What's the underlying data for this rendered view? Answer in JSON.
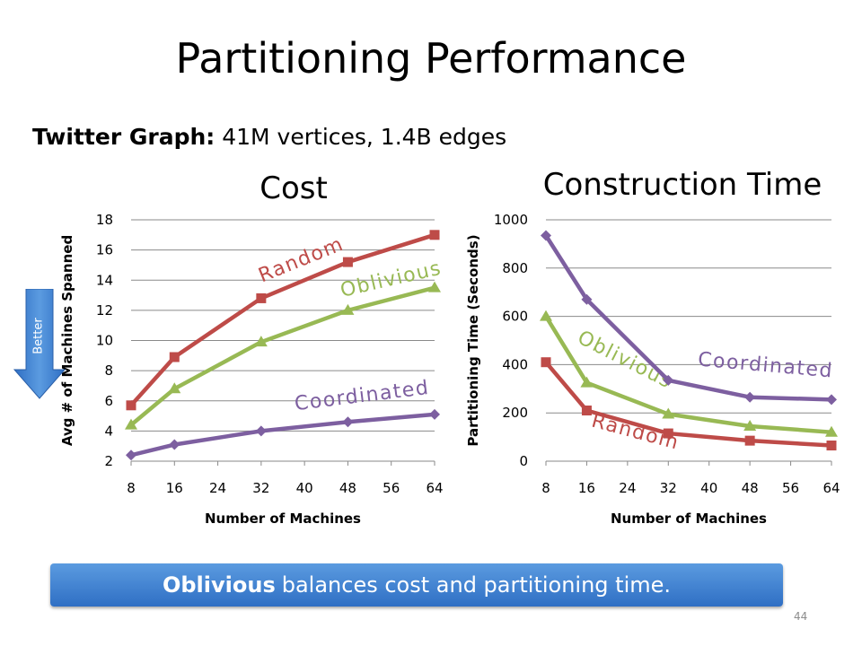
{
  "slide": {
    "title": "Partitioning Performance",
    "subtitle_bold": "Twitter Graph:",
    "subtitle_rest": " 41M vertices, 1.4B edges",
    "better_label": "Better",
    "banner_bold": "Oblivious",
    "banner_rest": "balances cost and partitioning time.",
    "slide_number": "44"
  },
  "chart_data": [
    {
      "id": "cost",
      "type": "line",
      "title": "Cost",
      "xlabel": "Number of Machines",
      "ylabel": "Avg # of Machines Spanned",
      "xlim": [
        8,
        64
      ],
      "ylim": [
        2,
        18
      ],
      "x_ticks": [
        "8",
        "16",
        "24",
        "32",
        "40",
        "48",
        "56",
        "64"
      ],
      "y_ticks": [
        "2",
        "4",
        "6",
        "8",
        "10",
        "12",
        "14",
        "16",
        "18"
      ],
      "x": [
        8,
        16,
        32,
        48,
        64
      ],
      "series": [
        {
          "name": "Random",
          "color": "#be4b48",
          "marker": "square",
          "values": [
            5.7,
            8.9,
            12.8,
            15.2,
            17.0
          ]
        },
        {
          "name": "Oblivious",
          "color": "#98b954",
          "marker": "triangle",
          "values": [
            4.4,
            6.8,
            9.9,
            12.0,
            13.5
          ]
        },
        {
          "name": "Coordinated",
          "color": "#7d5fa0",
          "marker": "diamond",
          "values": [
            2.4,
            3.1,
            4.0,
            4.6,
            5.1
          ]
        }
      ]
    },
    {
      "id": "time",
      "type": "line",
      "title": "Construction Time",
      "xlabel": "Number of Machines",
      "ylabel": "Partitioning Time (Seconds)",
      "xlim": [
        8,
        64
      ],
      "ylim": [
        0,
        1000
      ],
      "x_ticks": [
        "8",
        "16",
        "24",
        "32",
        "40",
        "48",
        "56",
        "64"
      ],
      "y_ticks": [
        "0",
        "200",
        "400",
        "600",
        "800",
        "1000"
      ],
      "x": [
        8,
        16,
        32,
        48,
        64
      ],
      "series": [
        {
          "name": "Random",
          "color": "#be4b48",
          "marker": "square",
          "values": [
            410,
            210,
            115,
            85,
            65
          ]
        },
        {
          "name": "Oblivious",
          "color": "#98b954",
          "marker": "triangle",
          "values": [
            600,
            325,
            195,
            145,
            120
          ]
        },
        {
          "name": "Coordinated",
          "color": "#7d5fa0",
          "marker": "diamond",
          "values": [
            935,
            670,
            335,
            265,
            255
          ]
        }
      ]
    }
  ]
}
